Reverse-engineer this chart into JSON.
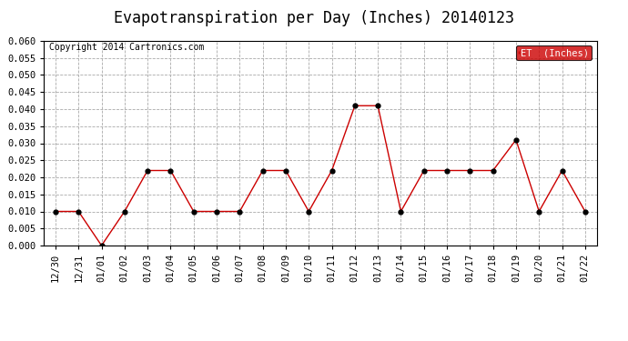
{
  "title": "Evapotranspiration per Day (Inches) 20140123",
  "copyright": "Copyright 2014 Cartronics.com",
  "legend_label": "ET  (Inches)",
  "x_labels": [
    "12/30",
    "12/31",
    "01/01",
    "01/02",
    "01/03",
    "01/04",
    "01/05",
    "01/06",
    "01/07",
    "01/08",
    "01/09",
    "01/10",
    "01/11",
    "01/12",
    "01/13",
    "01/14",
    "01/15",
    "01/16",
    "01/17",
    "01/18",
    "01/19",
    "01/20",
    "01/21",
    "01/22"
  ],
  "y_values": [
    0.01,
    0.01,
    0.0,
    0.01,
    0.022,
    0.022,
    0.01,
    0.01,
    0.01,
    0.022,
    0.022,
    0.01,
    0.022,
    0.041,
    0.041,
    0.01,
    0.022,
    0.022,
    0.022,
    0.022,
    0.031,
    0.01,
    0.022,
    0.01
  ],
  "line_color": "#cc0000",
  "marker_color": "#000000",
  "ylim": [
    0.0,
    0.06
  ],
  "yticks": [
    0.0,
    0.005,
    0.01,
    0.015,
    0.02,
    0.025,
    0.03,
    0.035,
    0.04,
    0.045,
    0.05,
    0.055,
    0.06
  ],
  "grid_color": "#aaaaaa",
  "bg_color": "#ffffff",
  "legend_bg": "#cc0000",
  "legend_text_color": "#ffffff",
  "title_fontsize": 12,
  "copyright_fontsize": 7,
  "tick_fontsize": 7.5
}
